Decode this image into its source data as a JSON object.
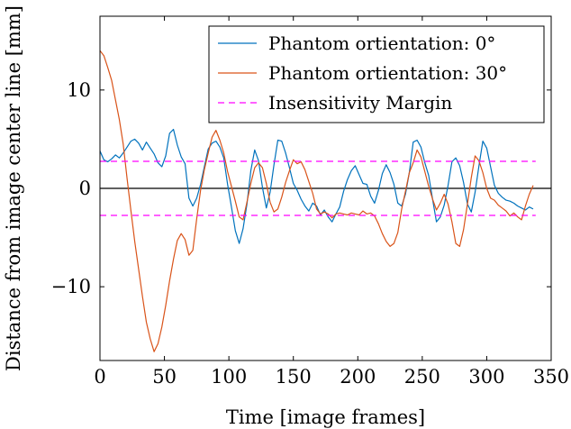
{
  "chart_data": {
    "type": "line",
    "title": "",
    "xlabel": "Time [image frames]",
    "ylabel": "Distance from image center line [mm]",
    "xlim": [
      0,
      350
    ],
    "ylim": [
      -17.5,
      17.5
    ],
    "xticks": [
      0,
      50,
      100,
      150,
      200,
      250,
      300,
      350
    ],
    "yticks": [
      -10,
      0,
      10
    ],
    "ytick_labels": [
      "−10",
      "0",
      "10"
    ],
    "grid": false,
    "legend_position": "top-right",
    "series": [
      {
        "name": "Phantom ortientation: 0°",
        "color": "#0072bd",
        "style": "solid",
        "x": [
          0,
          3,
          6,
          9,
          12,
          15,
          18,
          21,
          24,
          27,
          30,
          33,
          36,
          39,
          42,
          45,
          48,
          51,
          54,
          57,
          60,
          63,
          66,
          69,
          72,
          75,
          78,
          81,
          84,
          87,
          90,
          93,
          96,
          99,
          102,
          105,
          108,
          111,
          114,
          117,
          120,
          123,
          126,
          129,
          132,
          135,
          138,
          141,
          144,
          147,
          150,
          153,
          156,
          159,
          162,
          165,
          168,
          171,
          174,
          177,
          180,
          183,
          186,
          189,
          192,
          195,
          198,
          201,
          204,
          207,
          210,
          213,
          216,
          219,
          222,
          225,
          228,
          231,
          234,
          237,
          240,
          243,
          246,
          249,
          252,
          255,
          258,
          261,
          264,
          267,
          270,
          273,
          276,
          279,
          282,
          285,
          288,
          291,
          294,
          297,
          300,
          303,
          306,
          309,
          312,
          315,
          318,
          321,
          324,
          327,
          330,
          333,
          336
        ],
        "y": [
          3.8,
          2.9,
          2.7,
          3.0,
          3.4,
          3.1,
          3.6,
          4.2,
          4.8,
          5.0,
          4.6,
          3.9,
          4.7,
          4.1,
          3.5,
          2.6,
          2.2,
          3.3,
          5.6,
          6.0,
          4.4,
          3.2,
          2.5,
          -1.0,
          -1.8,
          -1.0,
          0.4,
          2.2,
          4.0,
          4.6,
          4.8,
          4.2,
          3.1,
          0.4,
          -1.9,
          -4.3,
          -5.6,
          -4.1,
          -1.6,
          1.8,
          3.9,
          2.8,
          0.1,
          -2.0,
          -0.4,
          2.4,
          4.9,
          4.8,
          3.6,
          2.1,
          0.5,
          -0.2,
          -1.1,
          -1.8,
          -2.3,
          -1.5,
          -1.8,
          -2.7,
          -2.2,
          -2.9,
          -3.4,
          -2.6,
          -1.9,
          -0.3,
          0.9,
          1.8,
          2.3,
          1.4,
          0.5,
          0.4,
          -0.8,
          -1.5,
          -0.2,
          1.5,
          2.4,
          1.6,
          0.4,
          -1.5,
          -1.8,
          -0.6,
          1.6,
          4.7,
          4.9,
          4.2,
          2.6,
          1.3,
          -1.1,
          -3.4,
          -2.9,
          -1.7,
          0.3,
          2.7,
          3.1,
          2.3,
          0.6,
          -1.6,
          -2.4,
          -0.4,
          2.3,
          4.8,
          4.1,
          2.2,
          0.3,
          -0.5,
          -0.9,
          -1.2,
          -1.3,
          -1.5,
          -1.8,
          -2.0,
          -2.2,
          -1.9,
          -2.1
        ]
      },
      {
        "name": "Phantom ortientation: 30°",
        "color": "#d95319",
        "style": "solid",
        "x": [
          0,
          3,
          6,
          9,
          12,
          15,
          18,
          21,
          24,
          27,
          30,
          33,
          36,
          39,
          42,
          45,
          48,
          51,
          54,
          57,
          60,
          63,
          66,
          69,
          72,
          75,
          78,
          81,
          84,
          87,
          90,
          93,
          96,
          99,
          102,
          105,
          108,
          111,
          114,
          117,
          120,
          123,
          126,
          129,
          132,
          135,
          138,
          141,
          144,
          147,
          150,
          153,
          156,
          159,
          162,
          165,
          168,
          171,
          174,
          177,
          180,
          183,
          186,
          189,
          192,
          195,
          198,
          201,
          204,
          207,
          210,
          213,
          216,
          219,
          222,
          225,
          228,
          231,
          234,
          237,
          240,
          243,
          246,
          249,
          252,
          255,
          258,
          261,
          264,
          267,
          270,
          273,
          276,
          279,
          282,
          285,
          288,
          291,
          294,
          297,
          300,
          303,
          306,
          309,
          312,
          315,
          318,
          321,
          324,
          327,
          330,
          333,
          336
        ],
        "y": [
          14.0,
          13.5,
          12.3,
          11.0,
          9.0,
          7.0,
          4.5,
          1.0,
          -2.3,
          -5.4,
          -8.2,
          -11.0,
          -13.6,
          -15.3,
          -16.6,
          -15.8,
          -14.1,
          -11.9,
          -9.4,
          -7.2,
          -5.3,
          -4.6,
          -5.2,
          -6.8,
          -6.3,
          -3.1,
          -0.2,
          1.9,
          3.6,
          5.2,
          5.9,
          4.9,
          3.6,
          1.7,
          0.2,
          -1.3,
          -2.9,
          -3.2,
          -1.4,
          0.5,
          2.1,
          2.6,
          2.1,
          0.5,
          -1.4,
          -2.4,
          -2.1,
          -0.9,
          0.6,
          1.8,
          2.9,
          2.5,
          2.7,
          1.9,
          0.7,
          -0.5,
          -2.1,
          -2.6,
          -2.4,
          -2.6,
          -3.0,
          -2.6,
          -2.5,
          -2.6,
          -2.7,
          -2.5,
          -2.6,
          -2.7,
          -2.3,
          -2.6,
          -2.5,
          -2.8,
          -3.6,
          -4.6,
          -5.4,
          -5.9,
          -5.6,
          -4.5,
          -2.1,
          -0.3,
          1.6,
          2.6,
          3.9,
          3.2,
          1.7,
          0.2,
          -1.1,
          -2.2,
          -1.5,
          -0.6,
          -1.6,
          -3.4,
          -5.6,
          -5.9,
          -4.2,
          -1.6,
          1.1,
          3.3,
          2.8,
          1.6,
          0.0,
          -1.0,
          -1.2,
          -1.7,
          -2.0,
          -2.3,
          -2.8,
          -2.5,
          -2.9,
          -3.2,
          -1.8,
          -0.6,
          0.3
        ]
      },
      {
        "name": "Insensitivity Margin",
        "color": "#ff00ff",
        "style": "dashed",
        "x": [
          0,
          338
        ],
        "y": [
          2.75,
          2.75
        ],
        "mirror_y": [
          -2.75,
          -2.75
        ]
      }
    ],
    "reference_line": {
      "y": 0,
      "color": "#000000"
    }
  }
}
